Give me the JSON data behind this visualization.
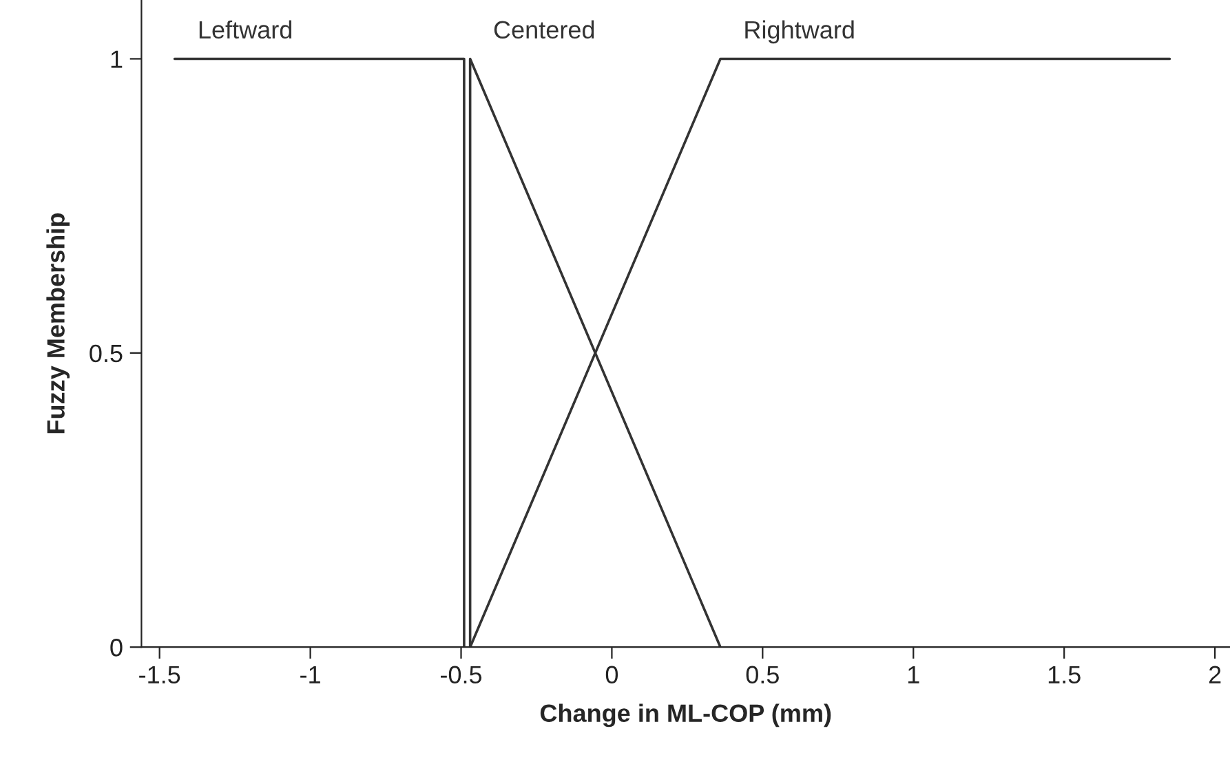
{
  "chart_data": {
    "type": "line",
    "xlabel": "Change in ML-COP (mm)",
    "ylabel": "Fuzzy Membership",
    "xlim": [
      -1.56,
      2.05
    ],
    "ylim": [
      0,
      1.1
    ],
    "xticks": [
      -1.5,
      -1,
      -0.5,
      0,
      0.5,
      1,
      1.5,
      2
    ],
    "yticks": [
      0,
      0.5,
      1
    ],
    "grid": false,
    "legend": false,
    "marker": "none",
    "line_style": "solid",
    "series": [
      {
        "name": "Leftward",
        "color": "#333333",
        "x": [
          -1.45,
          -0.49,
          -0.49
        ],
        "values": [
          1,
          1,
          0
        ]
      },
      {
        "name": "Centered",
        "color": "#333333",
        "x": [
          -0.47,
          -0.47,
          0.36
        ],
        "values": [
          0,
          1,
          0
        ]
      },
      {
        "name": "Rightward",
        "color": "#333333",
        "x": [
          -0.47,
          0.36,
          1.85
        ],
        "values": [
          0,
          1,
          1
        ]
      }
    ]
  }
}
